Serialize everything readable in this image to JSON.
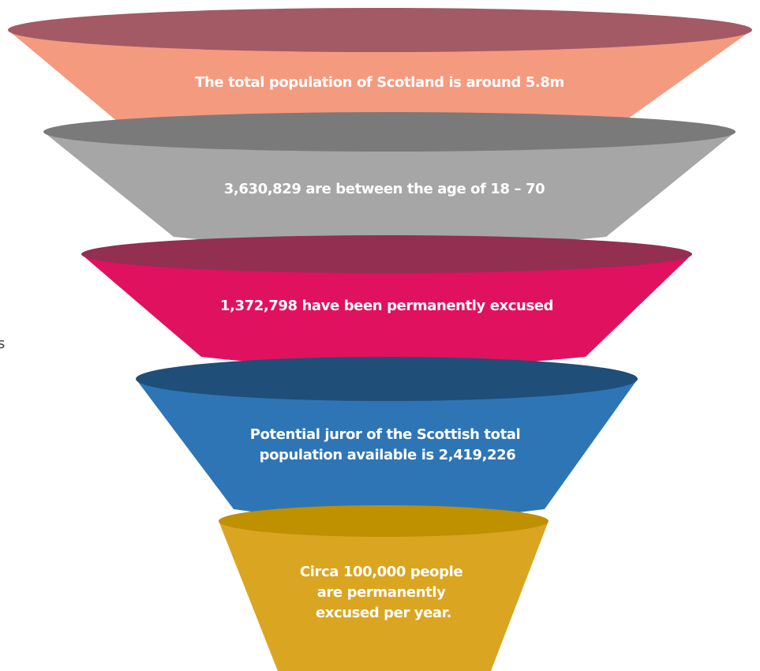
{
  "stages": [
    {
      "lines": [
        "The total population of Scotland is around 5.8m"
      ],
      "colors": {
        "body": "#f49a7f",
        "rim": "#a35a64"
      }
    },
    {
      "lines": [
        "3,630,829  are between the age of 18 – 70"
      ],
      "colors": {
        "body": "#a6a6a6",
        "rim": "#7a7a7a"
      }
    },
    {
      "lines": [
        "1,372,798   have been permanently excused"
      ],
      "colors": {
        "body": "#e0115f",
        "rim": "#932f50"
      }
    },
    {
      "lines": [
        "Potential juror of the Scottish total",
        "population  available is 2,419,226"
      ],
      "colors": {
        "body": "#2e75b6",
        "rim": "#1f4e79"
      }
    },
    {
      "lines": [
        "Circa 100,000 people",
        "are permanently",
        "excused per year."
      ],
      "colors": {
        "body": "#daa520",
        "rim": "#bf9000"
      }
    }
  ],
  "margin_text": "s"
}
